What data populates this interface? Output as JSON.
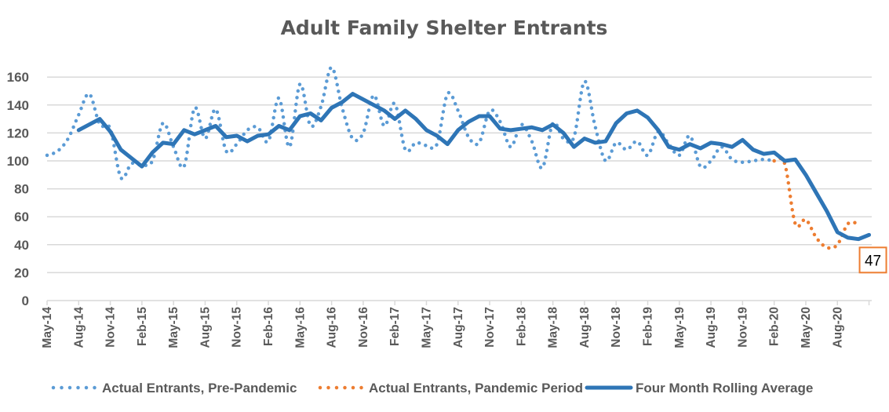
{
  "chart_data": {
    "type": "line",
    "title": "Adult Family Shelter Entrants",
    "xlabel": "",
    "ylabel": "",
    "ylim": [
      0,
      170
    ],
    "yticks": [
      0,
      20,
      40,
      60,
      80,
      100,
      120,
      140,
      160
    ],
    "grid": true,
    "legend_position": "bottom",
    "x_start": "May-14",
    "x_end": "Nov-20",
    "xtick_labels": [
      "May-14",
      "Aug-14",
      "Nov-14",
      "Feb-15",
      "May-15",
      "Aug-15",
      "Nov-15",
      "Feb-16",
      "May-16",
      "Aug-16",
      "Nov-16",
      "Feb-17",
      "May-17",
      "Aug-17",
      "Nov-17",
      "Feb-18",
      "May-18",
      "Aug-18",
      "Nov-18",
      "Feb-19",
      "May-19",
      "Aug-19",
      "Nov-19",
      "Feb-20",
      "May-20",
      "Aug-20"
    ],
    "series": [
      {
        "name": "Actual Entrants, Pre-Pandemic",
        "style": "dotted",
        "color": "#5B9BD5",
        "start_month_index": 0,
        "values": [
          104,
          107,
          116,
          133,
          148,
          126,
          123,
          88,
          98,
          97,
          100,
          127,
          110,
          96,
          138,
          116,
          137,
          107,
          112,
          122,
          124,
          114,
          145,
          110,
          155,
          125,
          139,
          167,
          138,
          116,
          120,
          147,
          125,
          141,
          108,
          113,
          111,
          112,
          148,
          136,
          117,
          113,
          136,
          128,
          110,
          126,
          114,
          95,
          127,
          116,
          117,
          157,
          125,
          100,
          113,
          108,
          114,
          104,
          121,
          112,
          104,
          118,
          96,
          100,
          110,
          101,
          99,
          100,
          101,
          100
        ]
      },
      {
        "name": "Actual Entrants, Pandemic Period",
        "style": "dotted",
        "color": "#ED7D31",
        "start_month_index": 69,
        "values": [
          100,
          98,
          55,
          58,
          45,
          38,
          40,
          55,
          55
        ]
      },
      {
        "name": "Four Month Rolling Average",
        "style": "solid",
        "color": "#2E75B6",
        "start_month_index": 3,
        "values": [
          122,
          126,
          130,
          121,
          108,
          102,
          96,
          106,
          113,
          112,
          122,
          119,
          122,
          125,
          117,
          118,
          114,
          118,
          119,
          125,
          122,
          132,
          134,
          129,
          138,
          142,
          148,
          144,
          140,
          136,
          130,
          136,
          130,
          122,
          118,
          112,
          122,
          128,
          132,
          132,
          123,
          122,
          123,
          124,
          122,
          126,
          120,
          110,
          116,
          113,
          114,
          127,
          134,
          136,
          131,
          122,
          110,
          108,
          112,
          109,
          113,
          112,
          110,
          115,
          108,
          105,
          106,
          100,
          101,
          90,
          77,
          64,
          49,
          45,
          44,
          47
        ]
      }
    ],
    "annotations": [
      {
        "text": "47",
        "series": "Four Month Rolling Average",
        "at": "last",
        "border_color": "#ED7D31"
      }
    ]
  }
}
